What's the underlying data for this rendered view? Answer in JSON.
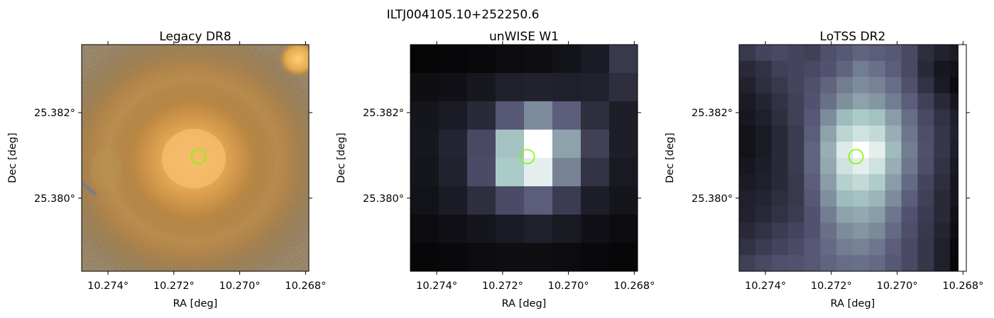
{
  "figure": {
    "suptitle": "ILTJ004105.10+252250.6"
  },
  "colors": {
    "marker": "#7cfc00",
    "axes": "#000000"
  },
  "chart_data": [
    {
      "type": "heatmap",
      "title": "Legacy DR8",
      "xlabel": "RA [deg]",
      "ylabel": "Dec [deg]",
      "xlim": [
        10.2748,
        10.2679
      ],
      "ylim": [
        25.37829,
        25.38359
      ],
      "x_ticks": [
        10.274,
        10.272,
        10.27,
        10.268
      ],
      "x_tick_labels": [
        "10.274°",
        "10.272°",
        "10.270°",
        "10.268°"
      ],
      "y_ticks": [
        25.382,
        25.38
      ],
      "y_tick_labels": [
        "25.382°",
        "25.380°"
      ],
      "colormap": "optical color composite (gri)",
      "source_marker": {
        "ra": 10.27125,
        "dec": 25.38097,
        "shape": "circle"
      }
    },
    {
      "type": "heatmap",
      "title": "unWISE W1",
      "xlabel": "RA [deg]",
      "ylabel": "Dec [deg]",
      "xlim": [
        10.2748,
        10.2679
      ],
      "ylim": [
        25.37829,
        25.38359
      ],
      "x_ticks": [
        10.274,
        10.272,
        10.27,
        10.268
      ],
      "x_tick_labels": [
        "10.274°",
        "10.272°",
        "10.270°",
        "10.268°"
      ],
      "y_ticks": [
        25.382,
        25.38
      ],
      "y_tick_labels": [
        "25.382°",
        "25.380°"
      ],
      "colormap": "bone",
      "grid_shape": [
        8,
        8
      ],
      "intensity": [
        [
          0.02,
          0.03,
          0.04,
          0.05,
          0.06,
          0.08,
          0.12,
          0.25
        ],
        [
          0.06,
          0.07,
          0.1,
          0.14,
          0.15,
          0.14,
          0.15,
          0.2
        ],
        [
          0.09,
          0.12,
          0.18,
          0.38,
          0.55,
          0.4,
          0.2,
          0.13
        ],
        [
          0.1,
          0.16,
          0.32,
          0.72,
          1.0,
          0.62,
          0.28,
          0.13
        ],
        [
          0.09,
          0.15,
          0.33,
          0.75,
          0.92,
          0.52,
          0.22,
          0.11
        ],
        [
          0.08,
          0.12,
          0.2,
          0.33,
          0.4,
          0.26,
          0.13,
          0.09
        ],
        [
          0.05,
          0.07,
          0.09,
          0.12,
          0.14,
          0.11,
          0.07,
          0.05
        ],
        [
          0.03,
          0.04,
          0.05,
          0.06,
          0.06,
          0.05,
          0.04,
          0.03
        ]
      ],
      "source_marker": {
        "ra": 10.27125,
        "dec": 25.38097,
        "shape": "circle"
      }
    },
    {
      "type": "heatmap",
      "title": "LoTSS DR2",
      "xlabel": "RA [deg]",
      "ylabel": "Dec [deg]",
      "xlim": [
        10.2748,
        10.2679
      ],
      "ylim": [
        25.37829,
        25.38359
      ],
      "x_ticks": [
        10.274,
        10.272,
        10.27,
        10.268
      ],
      "x_tick_labels": [
        "10.274°",
        "10.272°",
        "10.270°",
        "10.268°"
      ],
      "y_ticks": [
        25.382,
        25.38
      ],
      "y_tick_labels": [
        "25.382°",
        "25.380°"
      ],
      "colormap": "bone",
      "grid_shape": [
        14,
        14
      ],
      "intensity": [
        [
          0.25,
          0.3,
          0.32,
          0.3,
          0.28,
          0.35,
          0.38,
          0.42,
          0.4,
          0.38,
          0.32,
          0.2,
          0.15,
          0.12
        ],
        [
          0.18,
          0.22,
          0.28,
          0.3,
          0.32,
          0.36,
          0.42,
          0.5,
          0.46,
          0.4,
          0.32,
          0.18,
          0.1,
          0.08
        ],
        [
          0.15,
          0.2,
          0.25,
          0.3,
          0.35,
          0.42,
          0.5,
          0.55,
          0.52,
          0.45,
          0.35,
          0.22,
          0.12,
          0.05
        ],
        [
          0.12,
          0.16,
          0.22,
          0.28,
          0.36,
          0.46,
          0.56,
          0.62,
          0.58,
          0.5,
          0.4,
          0.28,
          0.18,
          0.1
        ],
        [
          0.1,
          0.14,
          0.2,
          0.28,
          0.38,
          0.55,
          0.7,
          0.75,
          0.72,
          0.6,
          0.45,
          0.32,
          0.22,
          0.14
        ],
        [
          0.08,
          0.12,
          0.18,
          0.26,
          0.4,
          0.62,
          0.8,
          0.86,
          0.82,
          0.66,
          0.48,
          0.34,
          0.24,
          0.15
        ],
        [
          0.08,
          0.12,
          0.18,
          0.26,
          0.42,
          0.66,
          0.9,
          1.0,
          0.92,
          0.7,
          0.5,
          0.35,
          0.24,
          0.14
        ],
        [
          0.1,
          0.13,
          0.18,
          0.26,
          0.42,
          0.64,
          0.86,
          0.92,
          0.86,
          0.66,
          0.48,
          0.34,
          0.22,
          0.12
        ],
        [
          0.12,
          0.14,
          0.18,
          0.25,
          0.4,
          0.6,
          0.78,
          0.82,
          0.76,
          0.6,
          0.44,
          0.3,
          0.2,
          0.1
        ],
        [
          0.14,
          0.16,
          0.2,
          0.25,
          0.38,
          0.56,
          0.7,
          0.72,
          0.68,
          0.55,
          0.4,
          0.28,
          0.18,
          0.1
        ],
        [
          0.15,
          0.18,
          0.22,
          0.26,
          0.36,
          0.5,
          0.62,
          0.64,
          0.6,
          0.48,
          0.36,
          0.26,
          0.18,
          0.08
        ],
        [
          0.18,
          0.22,
          0.26,
          0.3,
          0.36,
          0.46,
          0.55,
          0.58,
          0.54,
          0.44,
          0.34,
          0.25,
          0.16,
          0.06
        ],
        [
          0.22,
          0.26,
          0.3,
          0.33,
          0.38,
          0.44,
          0.5,
          0.52,
          0.48,
          0.4,
          0.32,
          0.24,
          0.14,
          0.04
        ],
        [
          0.28,
          0.32,
          0.35,
          0.36,
          0.38,
          0.42,
          0.45,
          0.46,
          0.44,
          0.38,
          0.32,
          0.24,
          0.14,
          0.03
        ]
      ],
      "source_marker": {
        "ra": 10.27125,
        "dec": 25.38097,
        "shape": "circle"
      }
    }
  ]
}
